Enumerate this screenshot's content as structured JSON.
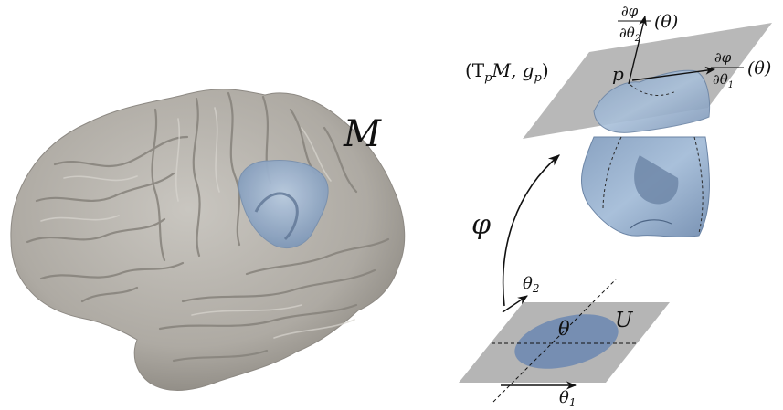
{
  "colors": {
    "brain": "#b5b1aa",
    "brain_shadow": "#7c7872",
    "patch": "#9fb5cf",
    "patch_dark": "#6f85a3",
    "plane": "#a4a4a4",
    "ellipse": "#6e88b0"
  },
  "labels": {
    "manifold": "M",
    "tangent_space": "(T",
    "tangent_sub": "p",
    "tangent_mid": "M, g",
    "tangent_sub2": "p",
    "tangent_close": ")",
    "point": "p",
    "map": "φ",
    "param_point": "θ",
    "domain": "U",
    "axis_theta1": "θ",
    "axis_theta1_sub": "1",
    "axis_theta2": "θ",
    "axis_theta2_sub": "2",
    "deriv1_num": "∂φ",
    "deriv1_den": "∂θ",
    "deriv1_den_sub": "1",
    "deriv1_arg": "(θ)",
    "deriv2_num": "∂φ",
    "deriv2_den": "∂θ",
    "deriv2_den_sub": "2",
    "deriv2_arg": "(θ)"
  }
}
